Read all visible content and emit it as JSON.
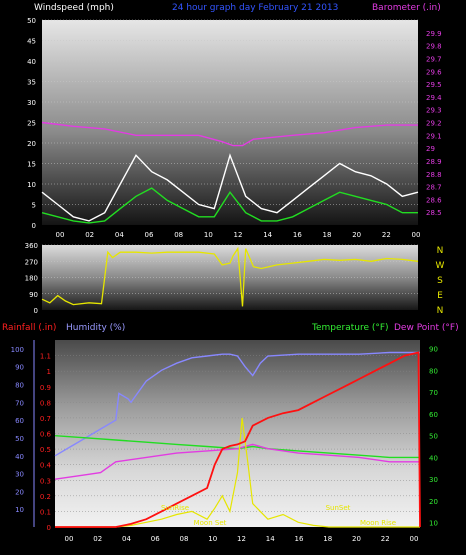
{
  "chart_data": [
    {
      "type": "line",
      "title": "24 hour graph day   February 21 2013",
      "ylabel": "Windspeed (mph)",
      "y2label": "Barometer (.in)",
      "ylim": [
        0,
        50
      ],
      "y2lim": [
        28.4,
        30.0
      ],
      "yticks": [
        "0",
        "5",
        "10",
        "15",
        "20",
        "25",
        "30",
        "35",
        "40",
        "45",
        "50"
      ],
      "y2ticks": [
        "28.5",
        "28.6",
        "28.7",
        "28.8",
        "28.9",
        "29",
        "29.1",
        "29.2",
        "29.3",
        "29.4",
        "29.5",
        "29.6",
        "29.7",
        "29.8",
        "29.9"
      ],
      "xticks": [
        "00",
        "02",
        "04",
        "06",
        "08",
        "10",
        "12",
        "14",
        "16",
        "18",
        "20",
        "22",
        "00"
      ],
      "series": [
        {
          "x": [
            0,
            1,
            2,
            3,
            4,
            5,
            6,
            7,
            8,
            9,
            10,
            11,
            12,
            13,
            14,
            15,
            16,
            17,
            18,
            19,
            20,
            21,
            22,
            23,
            24
          ],
          "values": [
            8,
            5,
            2,
            1,
            3,
            10,
            17,
            13,
            11,
            8,
            5,
            4,
            17,
            7,
            4,
            3,
            6,
            9,
            12,
            15,
            13,
            12,
            10,
            7,
            8
          ]
        },
        {
          "x": [
            0,
            1,
            2,
            3,
            4,
            5,
            6,
            7,
            8,
            9,
            10,
            11,
            12,
            13,
            14,
            15,
            16,
            17,
            18,
            19,
            20,
            21,
            22,
            23,
            24
          ],
          "values": [
            3,
            2,
            1,
            0.5,
            1,
            4,
            7,
            9,
            6,
            4,
            2,
            2,
            8,
            3,
            1,
            1,
            2,
            4,
            6,
            8,
            7,
            6,
            5,
            3,
            3
          ]
        },
        {
          "x": [
            0,
            2,
            4,
            6,
            8,
            10,
            11.5,
            12.2,
            12.8,
            13.5,
            16,
            18,
            20,
            22,
            24
          ],
          "values": [
            29.2,
            29.17,
            29.15,
            29.1,
            29.1,
            29.1,
            29.05,
            29.02,
            29.02,
            29.07,
            29.1,
            29.12,
            29.16,
            29.18,
            29.18
          ]
        }
      ]
    },
    {
      "type": "line",
      "ylim": [
        0,
        360
      ],
      "yticks": [
        "0",
        "90",
        "180",
        "270",
        "360"
      ],
      "y2ticks": [
        "N",
        "W",
        "S",
        "E",
        "N"
      ],
      "xticks": [
        "00",
        "02",
        "04",
        "06",
        "08",
        "10",
        "12",
        "14",
        "16",
        "18",
        "20",
        "22",
        "00"
      ],
      "series": [
        {
          "x": [
            0,
            0.5,
            1,
            1.5,
            2,
            3,
            3.8,
            4.2,
            4.5,
            5,
            6,
            7,
            8,
            9,
            10,
            11,
            11.5,
            12,
            12.2,
            12.5,
            12.8,
            13,
            13.5,
            14,
            15,
            16,
            17,
            18,
            19,
            20,
            21,
            22,
            23,
            24
          ],
          "values": [
            60,
            40,
            80,
            50,
            30,
            40,
            35,
            320,
            290,
            320,
            320,
            315,
            320,
            320,
            320,
            310,
            250,
            260,
            300,
            340,
            20,
            340,
            240,
            230,
            250,
            260,
            270,
            280,
            275,
            280,
            270,
            285,
            280,
            270
          ]
        }
      ]
    },
    {
      "type": "line",
      "ylabel": "Rainfall (.in)",
      "ylabel2": "Humidity (%)",
      "y2label": "Temperature (°F)",
      "y2label2": "Dew Point (°F)",
      "ylim": [
        0,
        1.2
      ],
      "y2lim": [
        8,
        94
      ],
      "yticks": [
        "0",
        "0.1",
        "0.2",
        "0.3",
        "0.4",
        "0.5",
        "0.6",
        "0.7",
        "0.8",
        "0.9",
        "1",
        "1.1"
      ],
      "humidity_ticks": [
        "10",
        "20",
        "30",
        "40",
        "50",
        "60",
        "70",
        "80",
        "90",
        "100"
      ],
      "y2ticks": [
        "10",
        "20",
        "30",
        "40",
        "50",
        "60",
        "70",
        "80",
        "90"
      ],
      "xticks": [
        "00",
        "02",
        "04",
        "06",
        "08",
        "10",
        "12",
        "14",
        "16",
        "18",
        "20",
        "22",
        "00"
      ],
      "annotations": [
        "SunRise",
        "SunSet",
        "Moon Set",
        "Moon Rise"
      ],
      "series": [
        {
          "x": [
            0,
            4,
            5,
            6,
            7,
            8,
            9,
            10,
            10.5,
            11,
            11.5,
            12,
            12.5,
            13,
            14,
            15,
            16,
            17,
            18,
            19,
            20,
            21,
            22,
            23,
            23.9,
            24
          ],
          "values": [
            0,
            0,
            0.02,
            0.05,
            0.1,
            0.15,
            0.2,
            0.25,
            0.4,
            0.5,
            0.52,
            0.53,
            0.55,
            0.65,
            0.7,
            0.73,
            0.75,
            0.8,
            0.85,
            0.9,
            0.95,
            1.0,
            1.05,
            1.1,
            1.12,
            0
          ]
        },
        {
          "x": [
            0,
            1,
            2,
            3,
            4,
            4.2,
            4.8,
            5,
            6,
            7,
            8,
            9,
            10,
            11,
            11.5,
            12,
            12.5,
            13,
            13.5,
            14,
            16,
            18,
            20,
            22,
            24
          ],
          "values": [
            40,
            45,
            50,
            55,
            60,
            75,
            72,
            70,
            82,
            88,
            92,
            95,
            96,
            97,
            97,
            96,
            90,
            85,
            92,
            96,
            97,
            97,
            97,
            98,
            98
          ]
        },
        {
          "x": [
            0,
            2,
            4,
            6,
            8,
            10,
            12,
            13,
            14,
            16,
            18,
            20,
            22,
            24
          ],
          "values": [
            50,
            49,
            48,
            47,
            46,
            45,
            44,
            45,
            44,
            43,
            42,
            41,
            40,
            40
          ]
        },
        {
          "x": [
            0,
            2,
            3,
            4,
            6,
            8,
            10,
            12,
            13,
            14,
            16,
            18,
            20,
            22,
            24
          ],
          "values": [
            30,
            32,
            33,
            38,
            40,
            42,
            43,
            44,
            46,
            44,
            42,
            41,
            40,
            38,
            38
          ]
        },
        {
          "x": [
            0,
            4,
            5,
            6,
            7,
            8,
            9,
            10,
            10.5,
            11,
            11.5,
            12,
            12.3,
            12.7,
            13,
            13.5,
            14,
            15,
            16,
            17,
            18,
            24
          ],
          "values": [
            0,
            0,
            0.01,
            0.03,
            0.05,
            0.08,
            0.1,
            0.05,
            0.12,
            0.2,
            0.1,
            0.35,
            0.7,
            0.4,
            0.15,
            0.1,
            0.05,
            0.08,
            0.03,
            0.01,
            0,
            0
          ]
        }
      ]
    }
  ]
}
